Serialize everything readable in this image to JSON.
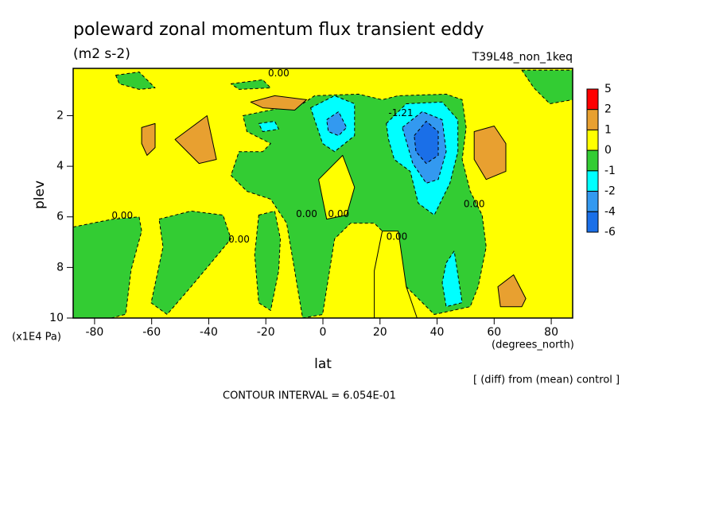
{
  "chart_data": {
    "type": "contour",
    "title": "poleward zonal momentum flux transient eddy",
    "subtitle": "(m2 s-2)",
    "dataset": "T39L48_non_1keq",
    "x_label": "lat",
    "x_units": "(degrees_north)",
    "y_label": "plev",
    "y_units": "(x1E4 Pa)",
    "note": "[ (diff) from (mean) control ]",
    "contour_interval": "CONTOUR INTERVAL = 6.054E-01",
    "xlim": [
      -87.5,
      87.5
    ],
    "ylim": [
      10,
      0.13
    ],
    "xticks": [
      -80,
      -60,
      -40,
      -20,
      0,
      20,
      40,
      60,
      80
    ],
    "yticks": [
      2,
      4,
      6,
      8,
      10
    ],
    "colorbar": {
      "levels": [
        5,
        2,
        1,
        0,
        -1,
        -2,
        -4,
        -6
      ],
      "colors": [
        "#ff0000",
        "#e8a030",
        "#ffff00",
        "#33cc33",
        "#00ffff",
        "#3399f0",
        "#1a6fe8"
      ]
    },
    "regions": [
      {
        "min": -1,
        "max": 0,
        "points": [
          [
            -87.5,
            6.4
          ],
          [
            -74,
            6.1
          ],
          [
            -64.4,
            6.0
          ],
          [
            -63.5,
            6.56
          ],
          [
            -67.2,
            8.1
          ],
          [
            -69.1,
            9.85
          ],
          [
            -74.1,
            10
          ],
          [
            -87.5,
            10
          ]
        ]
      },
      {
        "min": -1,
        "max": 0,
        "points": [
          [
            -72.6,
            0.4
          ],
          [
            -64.4,
            0.27
          ],
          [
            -58.8,
            0.9
          ],
          [
            -64.4,
            0.96
          ],
          [
            -71.3,
            0.74
          ]
        ]
      },
      {
        "min": -1,
        "max": 0,
        "points": [
          [
            -28,
            2.0
          ],
          [
            -21.1,
            1.84
          ],
          [
            -7.1,
            1.53
          ],
          [
            -2.9,
            1.21
          ],
          [
            12.5,
            1.15
          ],
          [
            20.8,
            1.37
          ],
          [
            26.4,
            1.21
          ],
          [
            43.2,
            1.15
          ],
          [
            48.8,
            1.37
          ],
          [
            50.2,
            2.47
          ],
          [
            48.8,
            3.73
          ],
          [
            51.6,
            4.99
          ],
          [
            55.8,
            5.93
          ],
          [
            57.2,
            7.19
          ],
          [
            54.4,
            8.76
          ],
          [
            51.6,
            9.55
          ],
          [
            39,
            9.86
          ],
          [
            29.2,
            8.76
          ],
          [
            26.4,
            7.19
          ],
          [
            20.8,
            6.56
          ],
          [
            18,
            6.25
          ],
          [
            9.7,
            6.25
          ],
          [
            4.1,
            6.87
          ],
          [
            -0.1,
            9.86
          ],
          [
            -7.1,
            10
          ],
          [
            -9.9,
            8.13
          ],
          [
            -12.7,
            6.25
          ],
          [
            -18.3,
            5.3
          ],
          [
            -26.6,
            4.99
          ],
          [
            -32.2,
            4.36
          ],
          [
            -29.4,
            3.42
          ],
          [
            -21.1,
            3.42
          ],
          [
            -18.3,
            3.1
          ],
          [
            -26.6,
            2.63
          ]
        ]
      },
      {
        "min": 0,
        "max": 1,
        "points": [
          [
            -1.5,
            4.52
          ],
          [
            6.9,
            3.57
          ],
          [
            11.1,
            4.83
          ],
          [
            8.3,
            5.93
          ],
          [
            1.3,
            6.09
          ]
        ]
      },
      {
        "min": 0,
        "max": 1,
        "points": [
          [
            20.8,
            6.56
          ],
          [
            26.4,
            6.56
          ],
          [
            29.2,
            8.76
          ],
          [
            33,
            10
          ],
          [
            18,
            10
          ],
          [
            18,
            8.13
          ]
        ]
      },
      {
        "min": -1,
        "max": 0,
        "points": [
          [
            -22.5,
            5.93
          ],
          [
            -16.9,
            5.77
          ],
          [
            -14.9,
            6.87
          ],
          [
            -15.5,
            8.13
          ],
          [
            -18.3,
            9.7
          ],
          [
            -22.5,
            9.4
          ],
          [
            -23.9,
            7.5
          ]
        ]
      },
      {
        "min": -1,
        "max": 0,
        "points": [
          [
            -57.4,
            6.09
          ],
          [
            -46.2,
            5.77
          ],
          [
            -35,
            5.93
          ],
          [
            -32.2,
            6.87
          ],
          [
            -39.2,
            7.82
          ],
          [
            -46.2,
            8.76
          ],
          [
            -54.6,
            9.86
          ],
          [
            -60.2,
            9.4
          ],
          [
            -56,
            7.19
          ]
        ]
      },
      {
        "min": -1,
        "max": 0,
        "points": [
          [
            69.7,
            0.2
          ],
          [
            87.5,
            0.2
          ],
          [
            87.5,
            1.37
          ],
          [
            79.5,
            1.53
          ],
          [
            73.9,
            0.9
          ]
        ]
      },
      {
        "min": -1,
        "max": 0,
        "points": [
          [
            -32.2,
            0.74
          ],
          [
            -21.1,
            0.58
          ],
          [
            -18.3,
            0.9
          ],
          [
            -29.4,
            0.96
          ]
        ]
      },
      {
        "min": 1,
        "max": 2,
        "points": [
          [
            -63.5,
            2.47
          ],
          [
            -58.8,
            2.31
          ],
          [
            -58.8,
            3.26
          ],
          [
            -61.6,
            3.57
          ],
          [
            -63.5,
            3.1
          ]
        ]
      },
      {
        "min": 1,
        "max": 2,
        "points": [
          [
            -51.8,
            2.94
          ],
          [
            -40.6,
            2.0
          ],
          [
            -37.3,
            3.73
          ],
          [
            -43.4,
            3.89
          ]
        ]
      },
      {
        "min": 1,
        "max": 2,
        "points": [
          [
            -25.3,
            1.46
          ],
          [
            -16.9,
            1.21
          ],
          [
            -5.7,
            1.37
          ],
          [
            -9.9,
            1.78
          ],
          [
            -21.1,
            1.69
          ]
        ]
      },
      {
        "min": 1,
        "max": 2,
        "points": [
          [
            53,
            2.63
          ],
          [
            60,
            2.41
          ],
          [
            64.1,
            3.1
          ],
          [
            64.1,
            4.2
          ],
          [
            57.2,
            4.52
          ],
          [
            53,
            3.73
          ]
        ]
      },
      {
        "min": 1,
        "max": 2,
        "points": [
          [
            61.3,
            8.76
          ],
          [
            66.8,
            8.29
          ],
          [
            71.1,
            9.23
          ],
          [
            69.7,
            9.55
          ],
          [
            62.2,
            9.55
          ]
        ]
      },
      {
        "min": -2,
        "max": -1,
        "points": [
          [
            -4.3,
            1.69
          ],
          [
            4.1,
            1.21
          ],
          [
            11.1,
            1.53
          ],
          [
            11.1,
            2.79
          ],
          [
            4.1,
            3.42
          ],
          [
            -0.1,
            3.1
          ],
          [
            -2.9,
            2.16
          ]
        ]
      },
      {
        "min": -2,
        "max": -1,
        "points": [
          [
            -22.5,
            2.31
          ],
          [
            -16.9,
            2.22
          ],
          [
            -15.5,
            2.53
          ],
          [
            -21.1,
            2.63
          ]
        ]
      },
      {
        "min": -2,
        "max": -1,
        "points": [
          [
            22.2,
            2.31
          ],
          [
            29.2,
            1.53
          ],
          [
            41.8,
            1.46
          ],
          [
            47.3,
            2.16
          ],
          [
            47.3,
            3.42
          ],
          [
            44.5,
            4.67
          ],
          [
            39,
            5.93
          ],
          [
            33.4,
            5.46
          ],
          [
            30.6,
            4.2
          ],
          [
            25,
            3.73
          ],
          [
            23,
            2.94
          ]
        ]
      },
      {
        "min": -2,
        "max": -1,
        "points": [
          [
            43.2,
            7.82
          ],
          [
            46,
            7.35
          ],
          [
            48.8,
            9.39
          ],
          [
            43.2,
            9.55
          ],
          [
            41.8,
            8.6
          ]
        ]
      },
      {
        "min": -4,
        "max": -2,
        "points": [
          [
            1.3,
            2.16
          ],
          [
            5.5,
            1.84
          ],
          [
            8.3,
            2.47
          ],
          [
            5.5,
            2.79
          ],
          [
            1.9,
            2.63
          ]
        ]
      },
      {
        "min": -4,
        "max": -2,
        "points": [
          [
            27.8,
            2.47
          ],
          [
            34.8,
            1.84
          ],
          [
            41.8,
            2.16
          ],
          [
            43.2,
            3.42
          ],
          [
            40.4,
            4.52
          ],
          [
            36.2,
            4.67
          ],
          [
            31.5,
            3.89
          ]
        ]
      },
      {
        "min": -6,
        "max": -4,
        "points": [
          [
            32,
            2.79
          ],
          [
            36.2,
            2.22
          ],
          [
            40.4,
            2.63
          ],
          [
            40.4,
            3.57
          ],
          [
            36.2,
            3.89
          ],
          [
            32.6,
            3.42
          ]
        ]
      }
    ],
    "annotations": [
      {
        "text": "0.00",
        "lat": -70.3,
        "plev": 5.96
      },
      {
        "text": "0.00",
        "lat": -29.4,
        "plev": 6.9
      },
      {
        "text": "0.00",
        "lat": -5.7,
        "plev": 5.9
      },
      {
        "text": "0.00",
        "lat": 5.5,
        "plev": 5.9
      },
      {
        "text": "0.00",
        "lat": 25.9,
        "plev": 6.8
      },
      {
        "text": "0.00",
        "lat": 53,
        "plev": 5.5
      },
      {
        "text": "0.00",
        "lat": -15.5,
        "plev": 0.33
      },
      {
        "text": "-1.21",
        "lat": 27.3,
        "plev": 1.9
      }
    ]
  }
}
